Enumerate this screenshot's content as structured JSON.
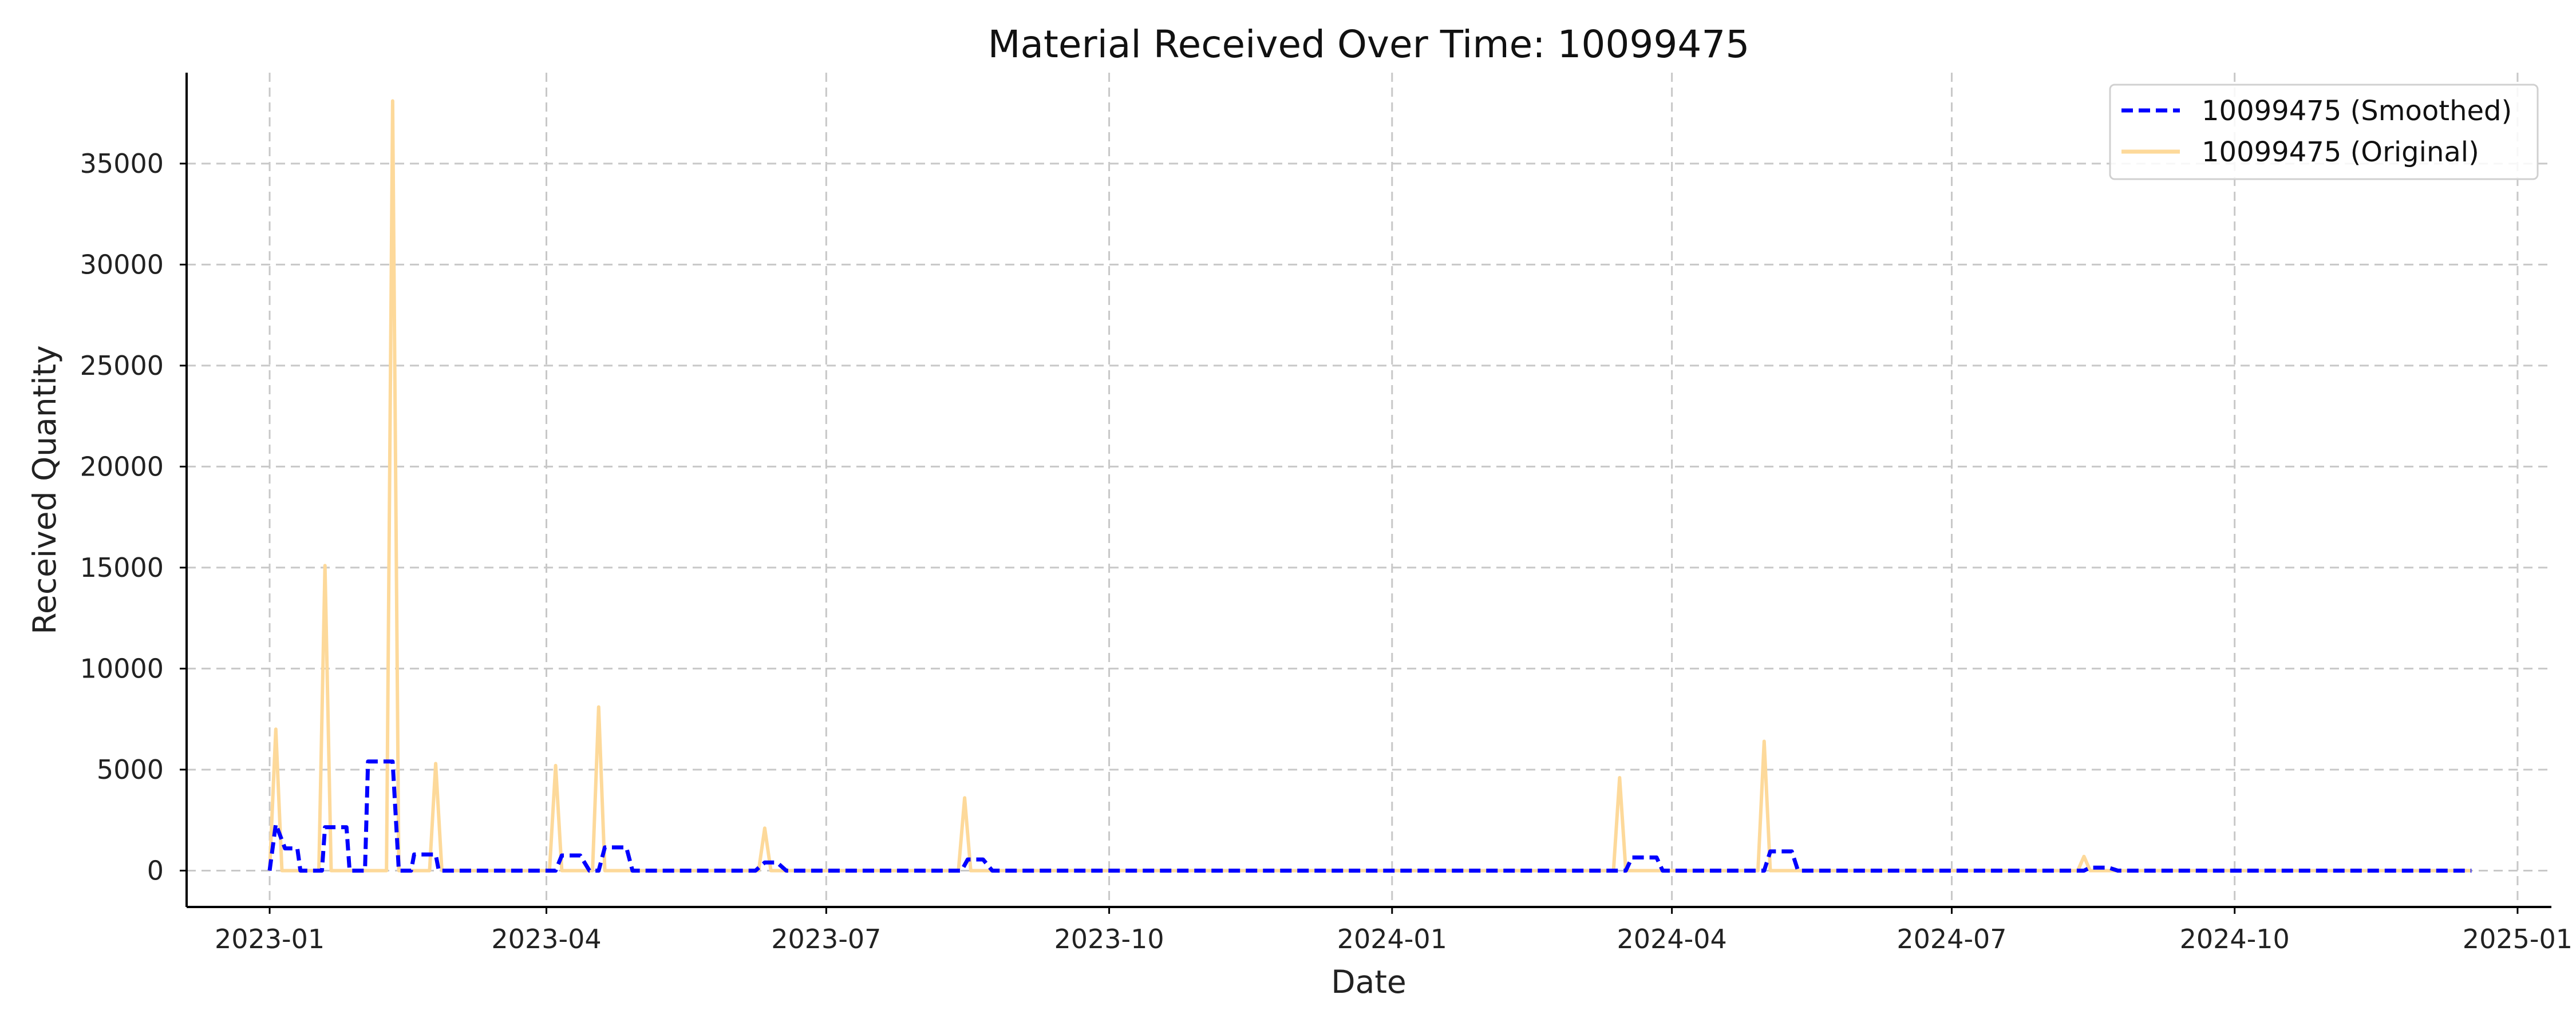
{
  "chart_data": {
    "type": "line",
    "title": "Material Received Over Time: 10099475",
    "xlabel": "Date",
    "ylabel": "Received Quantity",
    "xlim": [
      "2022-12-05",
      "2025-01-12"
    ],
    "ylim": [
      -1800,
      39500
    ],
    "grid": true,
    "legend_position": "top-right",
    "x_ticks": [
      "2023-01",
      "2023-04",
      "2023-07",
      "2023-10",
      "2024-01",
      "2024-04",
      "2024-07",
      "2024-10",
      "2025-01"
    ],
    "y_ticks": [
      0,
      5000,
      10000,
      15000,
      20000,
      25000,
      30000,
      35000
    ],
    "series": [
      {
        "name": "10099475 (Smoothed)",
        "color": "#0000ff",
        "style": "dashed",
        "points": [
          [
            "2023-01-01",
            0
          ],
          [
            "2023-01-03",
            2300
          ],
          [
            "2023-01-06",
            1100
          ],
          [
            "2023-01-10",
            1100
          ],
          [
            "2023-01-11",
            0
          ],
          [
            "2023-01-18",
            0
          ],
          [
            "2023-01-19",
            2150
          ],
          [
            "2023-01-26",
            2150
          ],
          [
            "2023-01-27",
            0
          ],
          [
            "2023-02-01",
            0
          ],
          [
            "2023-02-02",
            5400
          ],
          [
            "2023-02-10",
            5400
          ],
          [
            "2023-02-12",
            0
          ],
          [
            "2023-02-16",
            0
          ],
          [
            "2023-02-17",
            800
          ],
          [
            "2023-02-24",
            800
          ],
          [
            "2023-02-25",
            0
          ],
          [
            "2023-04-04",
            0
          ],
          [
            "2023-04-06",
            750
          ],
          [
            "2023-04-12",
            750
          ],
          [
            "2023-04-15",
            0
          ],
          [
            "2023-04-18",
            0
          ],
          [
            "2023-04-20",
            1150
          ],
          [
            "2023-04-27",
            1150
          ],
          [
            "2023-04-29",
            0
          ],
          [
            "2023-06-08",
            0
          ],
          [
            "2023-06-11",
            400
          ],
          [
            "2023-06-15",
            400
          ],
          [
            "2023-06-18",
            0
          ],
          [
            "2023-08-14",
            0
          ],
          [
            "2023-08-16",
            550
          ],
          [
            "2023-08-21",
            550
          ],
          [
            "2023-08-24",
            0
          ],
          [
            "2024-03-17",
            0
          ],
          [
            "2024-03-19",
            650
          ],
          [
            "2024-03-27",
            650
          ],
          [
            "2024-03-29",
            0
          ],
          [
            "2024-05-01",
            0
          ],
          [
            "2024-05-03",
            950
          ],
          [
            "2024-05-10",
            950
          ],
          [
            "2024-05-12",
            0
          ],
          [
            "2024-08-13",
            0
          ],
          [
            "2024-08-15",
            150
          ],
          [
            "2024-08-21",
            150
          ],
          [
            "2024-08-24",
            0
          ],
          [
            "2024-12-17",
            0
          ]
        ]
      },
      {
        "name": "10099475 (Original)",
        "color": "#fdd99a",
        "style": "solid",
        "points": [
          [
            "2023-01-01",
            0
          ],
          [
            "2023-01-03",
            7000
          ],
          [
            "2023-01-05",
            0
          ],
          [
            "2023-01-17",
            0
          ],
          [
            "2023-01-19",
            15100
          ],
          [
            "2023-01-21",
            0
          ],
          [
            "2023-02-08",
            0
          ],
          [
            "2023-02-10",
            38100
          ],
          [
            "2023-02-12",
            0
          ],
          [
            "2023-02-22",
            0
          ],
          [
            "2023-02-24",
            5300
          ],
          [
            "2023-02-26",
            0
          ],
          [
            "2023-04-02",
            0
          ],
          [
            "2023-04-04",
            5200
          ],
          [
            "2023-04-06",
            0
          ],
          [
            "2023-04_16",
            0
          ],
          [
            "2023-04-18",
            8100
          ],
          [
            "2023-04-20",
            0
          ],
          [
            "2023-06-09",
            0
          ],
          [
            "2023-06-11",
            2100
          ],
          [
            "2023-06-13",
            0
          ],
          [
            "2023-08-13",
            0
          ],
          [
            "2023-08-15",
            3600
          ],
          [
            "2023-08-17",
            0
          ],
          [
            "2024-03-13",
            0
          ],
          [
            "2024-03-15",
            4600
          ],
          [
            "2024-03-17",
            0
          ],
          [
            "2024-04-29",
            0
          ],
          [
            "2024-05-01",
            6400
          ],
          [
            "2024-05-03",
            0
          ],
          [
            "2024-08-11",
            0
          ],
          [
            "2024-08-13",
            700
          ],
          [
            "2024-08-15",
            0
          ],
          [
            "2024-12-17",
            0
          ]
        ]
      }
    ]
  }
}
